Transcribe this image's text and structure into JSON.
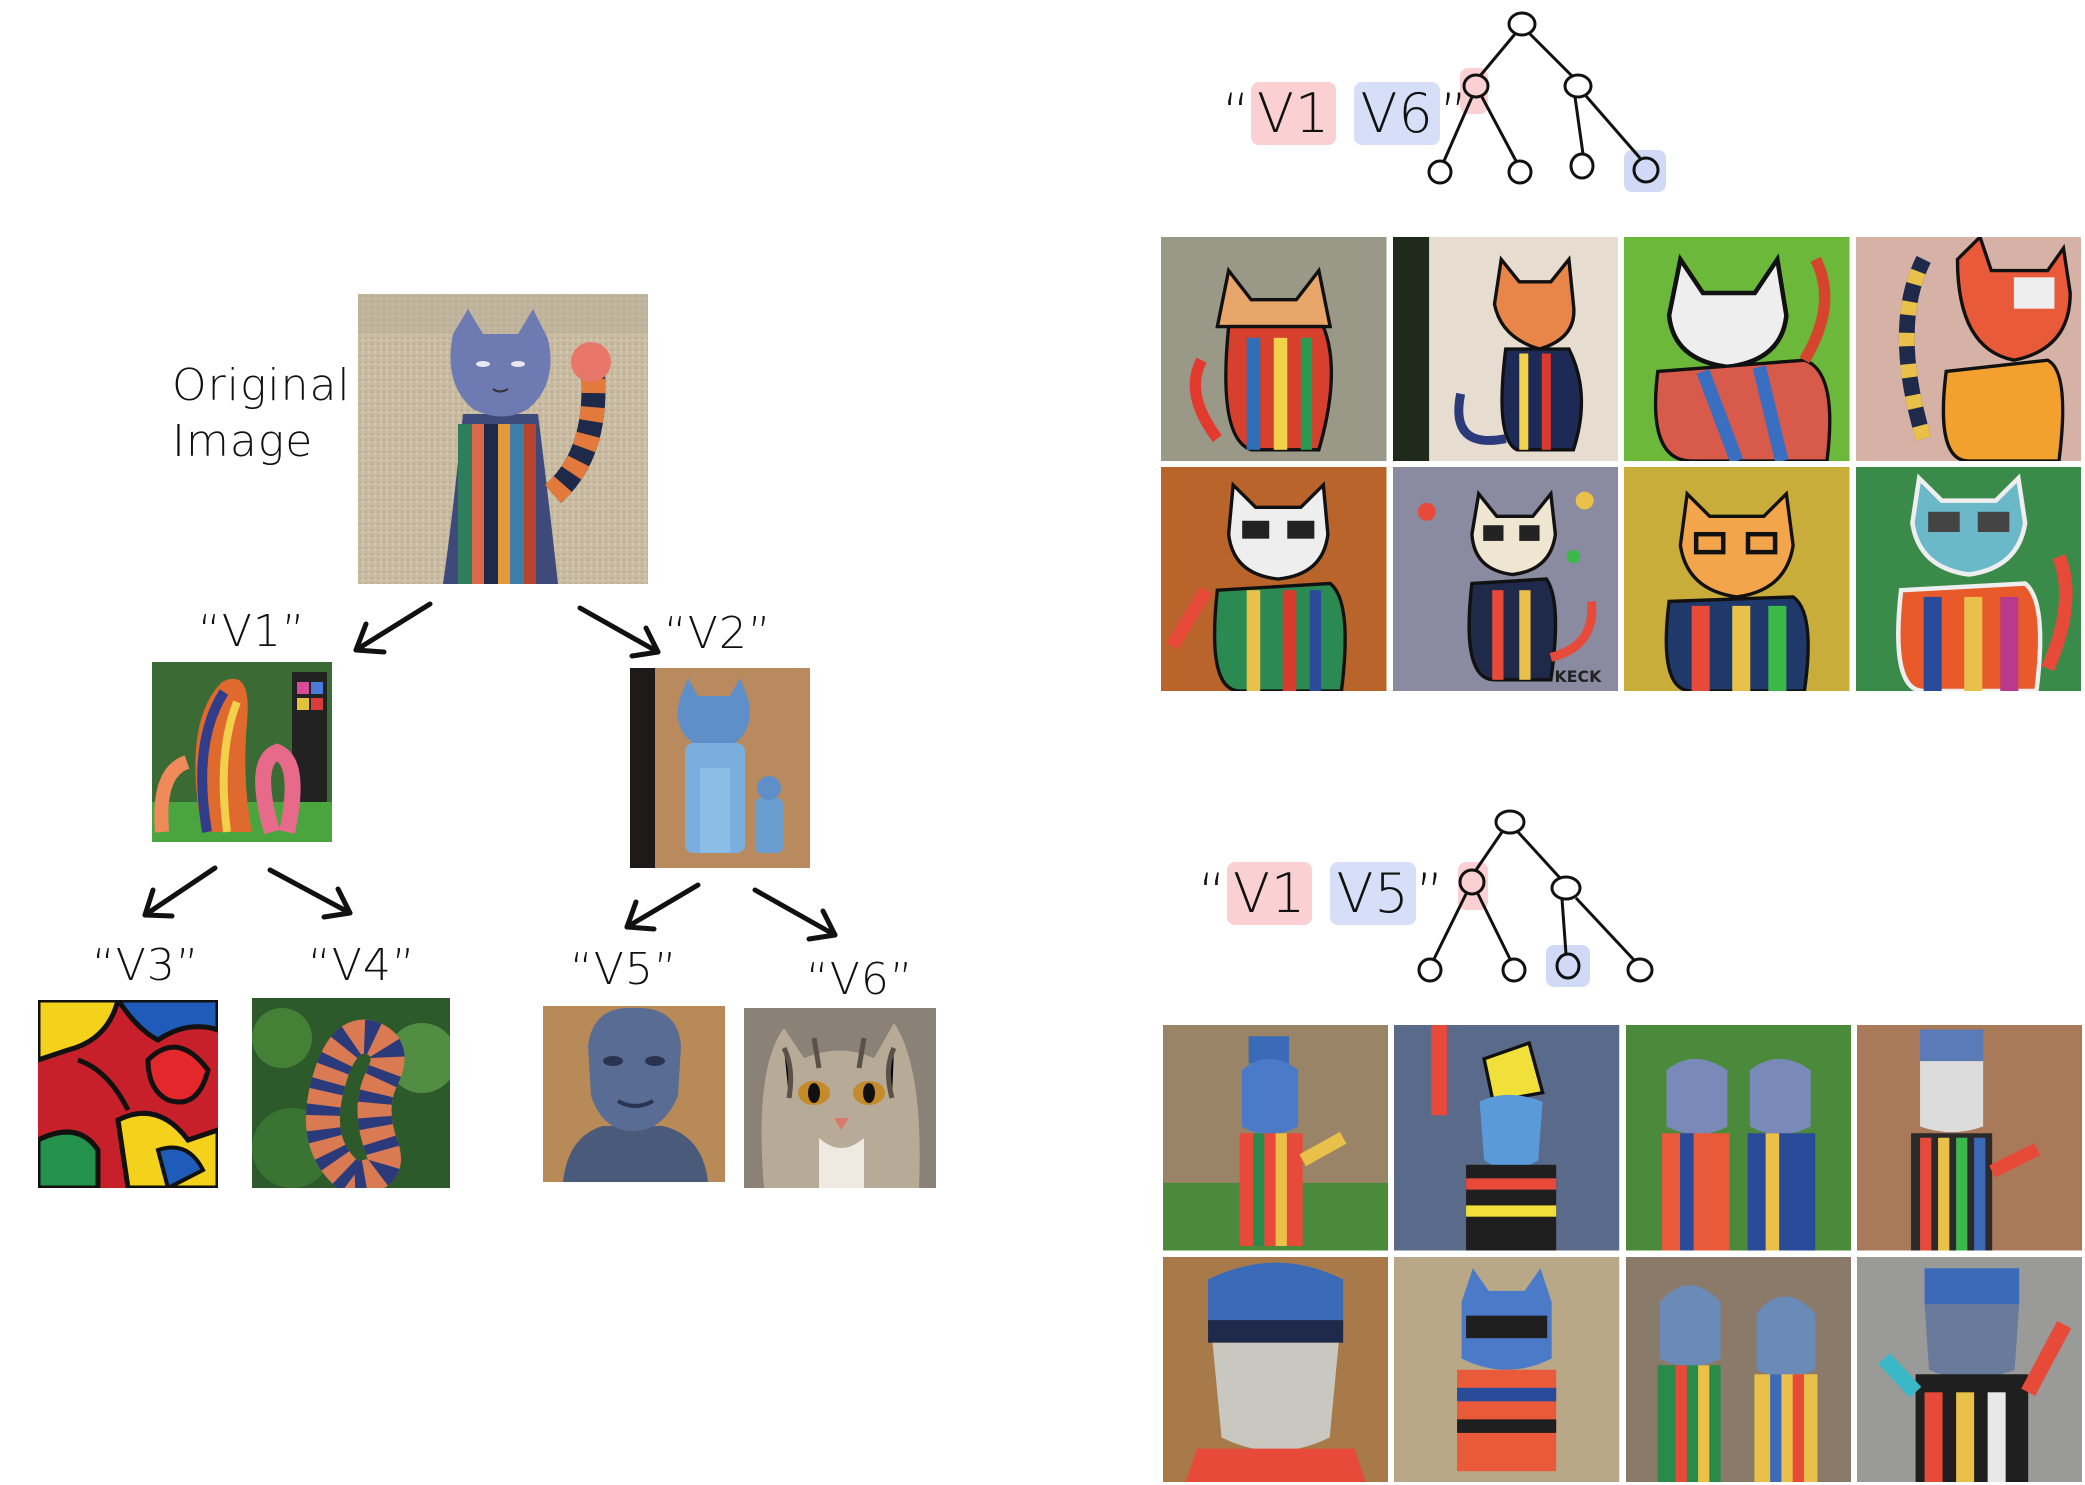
{
  "tree": {
    "original_label": [
      "Original",
      "Image"
    ],
    "nodes": {
      "v1": "“V1”",
      "v2": "“V2”",
      "v3": "“V3”",
      "v4": "“V4”",
      "v5": "“V5”",
      "v6": "“V6”"
    }
  },
  "panels": [
    {
      "prompt_open": "“",
      "tok_a": "V1",
      "tok_b": "V6",
      "prompt_close": "”",
      "highlight_colors": [
        "#f07882",
        "#7896e6"
      ]
    },
    {
      "prompt_open": "“",
      "tok_a": "V1",
      "tok_b": "V5",
      "prompt_close": "”",
      "highlight_colors": [
        "#f07882",
        "#7896e6"
      ]
    }
  ],
  "grid_top_watermark": "KECK"
}
